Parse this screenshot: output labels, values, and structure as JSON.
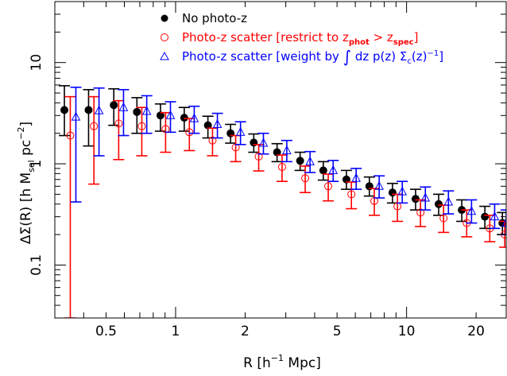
{
  "chart_data": {
    "type": "scatter",
    "xlabel_main": "R [h",
    "xlabel_sup": "−1",
    "xlabel_tail": " Mpc]",
    "ylabel": "ΔΣ(R) [h M",
    "ylabel_sub": "sol",
    "ylabel_mid": " pc",
    "ylabel_sup": "−2",
    "ylabel_tail": "]",
    "xscale": "log",
    "yscale": "log",
    "xlim": [
      0.3,
      27
    ],
    "ylim": [
      0.03,
      40
    ],
    "xticks_labeled": [
      {
        "value": 0.5,
        "label": "0.5"
      },
      {
        "value": 1,
        "label": "1"
      },
      {
        "value": 2,
        "label": "2"
      },
      {
        "value": 5,
        "label": "5"
      },
      {
        "value": 10,
        "label": "10"
      },
      {
        "value": 20,
        "label": "20"
      }
    ],
    "yticks_labeled": [
      {
        "value": 0.1,
        "label": "0.1"
      },
      {
        "value": 1,
        "label": "1"
      },
      {
        "value": 10,
        "label": "10"
      }
    ],
    "legend_position": "top",
    "series": [
      {
        "name": "No photo-z",
        "marker": "filled-circle",
        "color": "#000000",
        "points": [
          {
            "x": 0.33,
            "y": 3.4,
            "lo": 1.9,
            "hi": 5.9
          },
          {
            "x": 0.42,
            "y": 3.4,
            "lo": 1.5,
            "hi": 5.4
          },
          {
            "x": 0.54,
            "y": 3.8,
            "lo": 2.4,
            "hi": 5.5
          },
          {
            "x": 0.68,
            "y": 3.25,
            "lo": 2.0,
            "hi": 4.5
          },
          {
            "x": 0.86,
            "y": 3.0,
            "lo": 2.1,
            "hi": 3.9
          },
          {
            "x": 1.09,
            "y": 2.85,
            "lo": 2.1,
            "hi": 3.6
          },
          {
            "x": 1.38,
            "y": 2.4,
            "lo": 1.8,
            "hi": 2.95
          },
          {
            "x": 1.73,
            "y": 2.0,
            "lo": 1.6,
            "hi": 2.45
          },
          {
            "x": 2.18,
            "y": 1.62,
            "lo": 1.3,
            "hi": 1.97
          },
          {
            "x": 2.75,
            "y": 1.3,
            "lo": 1.05,
            "hi": 1.58
          },
          {
            "x": 3.46,
            "y": 1.07,
            "lo": 0.86,
            "hi": 1.3
          },
          {
            "x": 4.36,
            "y": 0.86,
            "lo": 0.69,
            "hi": 1.05
          },
          {
            "x": 5.49,
            "y": 0.7,
            "lo": 0.56,
            "hi": 0.86
          },
          {
            "x": 6.9,
            "y": 0.6,
            "lo": 0.48,
            "hi": 0.74
          },
          {
            "x": 8.69,
            "y": 0.52,
            "lo": 0.41,
            "hi": 0.64
          },
          {
            "x": 10.94,
            "y": 0.45,
            "lo": 0.35,
            "hi": 0.56
          },
          {
            "x": 13.77,
            "y": 0.4,
            "lo": 0.31,
            "hi": 0.5
          },
          {
            "x": 17.34,
            "y": 0.35,
            "lo": 0.27,
            "hi": 0.44
          },
          {
            "x": 21.83,
            "y": 0.3,
            "lo": 0.23,
            "hi": 0.38
          },
          {
            "x": 26.0,
            "y": 0.26,
            "lo": 0.2,
            "hi": 0.33
          }
        ]
      },
      {
        "name": "Photo-z scatter [restrict to z_phot > z_spec]",
        "legend_parts": {
          "a": "Photo-z scatter [restrict to z",
          "sub1": "phot",
          "b": " > z",
          "sub2": "spec",
          "c": "]"
        },
        "marker": "open-circle",
        "color": "#ff0000",
        "points": [
          {
            "x": 0.35,
            "y": 1.9,
            "lo": 0.03,
            "hi": 4.6
          },
          {
            "x": 0.443,
            "y": 2.35,
            "lo": 0.63,
            "hi": 4.6
          },
          {
            "x": 0.567,
            "y": 2.5,
            "lo": 1.1,
            "hi": 4.2
          },
          {
            "x": 0.714,
            "y": 2.35,
            "lo": 1.2,
            "hi": 3.6
          },
          {
            "x": 0.905,
            "y": 2.2,
            "lo": 1.3,
            "hi": 3.2
          },
          {
            "x": 1.147,
            "y": 2.05,
            "lo": 1.35,
            "hi": 2.8
          },
          {
            "x": 1.445,
            "y": 1.7,
            "lo": 1.2,
            "hi": 2.25
          },
          {
            "x": 1.82,
            "y": 1.45,
            "lo": 1.05,
            "hi": 1.9
          },
          {
            "x": 2.29,
            "y": 1.18,
            "lo": 0.85,
            "hi": 1.55
          },
          {
            "x": 2.89,
            "y": 0.93,
            "lo": 0.67,
            "hi": 1.22
          },
          {
            "x": 3.64,
            "y": 0.72,
            "lo": 0.52,
            "hi": 0.95
          },
          {
            "x": 4.58,
            "y": 0.6,
            "lo": 0.43,
            "hi": 0.79
          },
          {
            "x": 5.77,
            "y": 0.5,
            "lo": 0.36,
            "hi": 0.66
          },
          {
            "x": 7.25,
            "y": 0.43,
            "lo": 0.31,
            "hi": 0.57
          },
          {
            "x": 9.13,
            "y": 0.38,
            "lo": 0.27,
            "hi": 0.5
          },
          {
            "x": 11.49,
            "y": 0.33,
            "lo": 0.24,
            "hi": 0.44
          },
          {
            "x": 14.46,
            "y": 0.29,
            "lo": 0.21,
            "hi": 0.39
          },
          {
            "x": 18.21,
            "y": 0.26,
            "lo": 0.19,
            "hi": 0.35
          },
          {
            "x": 22.92,
            "y": 0.23,
            "lo": 0.17,
            "hi": 0.31
          },
          {
            "x": 26.6,
            "y": 0.2,
            "lo": 0.15,
            "hi": 0.27
          }
        ]
      },
      {
        "name": "Photo-z scatter [weight by ∫ dz p(z) Σc(z)−1]",
        "legend_parts": {
          "a": "Photo-z scatter [weight by ",
          "integral": "∫",
          "b": " dz p(z) Σ",
          "sub": "c",
          "c": "(z)",
          "sup": "−1",
          "d": "]"
        },
        "marker": "open-triangle",
        "color": "#0000ff",
        "points": [
          {
            "x": 0.37,
            "y": 2.9,
            "lo": 0.42,
            "hi": 5.7
          },
          {
            "x": 0.466,
            "y": 3.35,
            "lo": 1.2,
            "hi": 5.6
          },
          {
            "x": 0.595,
            "y": 3.6,
            "lo": 1.9,
            "hi": 5.4
          },
          {
            "x": 0.75,
            "y": 3.3,
            "lo": 2.0,
            "hi": 4.7
          },
          {
            "x": 0.95,
            "y": 3.0,
            "lo": 2.05,
            "hi": 4.1
          },
          {
            "x": 1.204,
            "y": 2.8,
            "lo": 2.0,
            "hi": 3.7
          },
          {
            "x": 1.517,
            "y": 2.45,
            "lo": 1.8,
            "hi": 3.15
          },
          {
            "x": 1.91,
            "y": 2.05,
            "lo": 1.55,
            "hi": 2.6
          },
          {
            "x": 2.4,
            "y": 1.6,
            "lo": 1.25,
            "hi": 2.0
          },
          {
            "x": 3.03,
            "y": 1.35,
            "lo": 1.05,
            "hi": 1.7
          },
          {
            "x": 3.82,
            "y": 1.05,
            "lo": 0.82,
            "hi": 1.32
          },
          {
            "x": 4.81,
            "y": 0.86,
            "lo": 0.67,
            "hi": 1.08
          },
          {
            "x": 6.05,
            "y": 0.72,
            "lo": 0.56,
            "hi": 0.9
          },
          {
            "x": 7.61,
            "y": 0.6,
            "lo": 0.46,
            "hi": 0.76
          },
          {
            "x": 9.58,
            "y": 0.53,
            "lo": 0.41,
            "hi": 0.67
          },
          {
            "x": 12.06,
            "y": 0.46,
            "lo": 0.35,
            "hi": 0.59
          },
          {
            "x": 15.18,
            "y": 0.42,
            "lo": 0.32,
            "hi": 0.54
          },
          {
            "x": 19.11,
            "y": 0.34,
            "lo": 0.26,
            "hi": 0.44
          },
          {
            "x": 24.06,
            "y": 0.3,
            "lo": 0.23,
            "hi": 0.4
          },
          {
            "x": 27.0,
            "y": 0.26,
            "lo": 0.2,
            "hi": 0.35
          }
        ]
      }
    ]
  }
}
